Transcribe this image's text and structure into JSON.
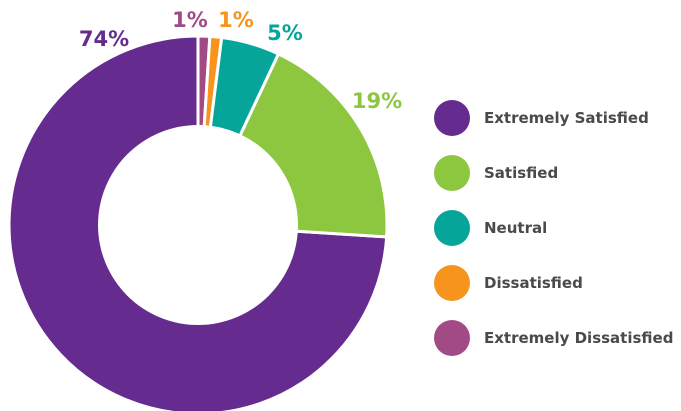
{
  "chart_data": {
    "type": "donut",
    "categories": [
      "Extremely Satisfied",
      "Satisfied",
      "Neutral",
      "Dissatisfied",
      "Extremely Dissatisfied"
    ],
    "values": [
      74,
      19,
      5,
      1,
      1
    ],
    "value_labels": [
      "74%",
      "19%",
      "5%",
      "1%",
      "1%"
    ],
    "colors": [
      "#652b8f",
      "#8dc63f",
      "#06a59a",
      "#f7941d",
      "#a14a85"
    ],
    "legend_position": "right"
  }
}
